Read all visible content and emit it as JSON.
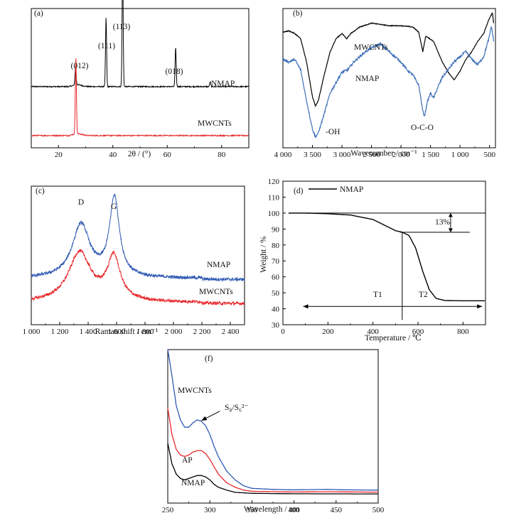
{
  "chart_data": [
    {
      "panel": "(a)",
      "type": "line",
      "xlabel": "2θ / (°)",
      "ylabel": "",
      "xlim": [
        10,
        90
      ],
      "xticks": [
        20,
        40,
        60,
        80
      ],
      "series": [
        {
          "name": "NMAP",
          "color": "#000000",
          "baseline": 0.62,
          "peaks": [
            [
              26.3,
              0.2
            ],
            [
              37.5,
              0.73
            ],
            [
              43.6,
              1.3
            ],
            [
              63.1,
              0.42
            ],
            [
              75.8,
              0.05
            ]
          ]
        },
        {
          "name": "MWCNTs",
          "color": "#e8282b",
          "baseline": 0.1,
          "peaks": [
            [
              26.4,
              0.82
            ]
          ]
        }
      ],
      "annotations": [
        {
          "text": "(012)",
          "x": 26.3
        },
        {
          "text": "(111)",
          "x": 37.5
        },
        {
          "text": "(113)",
          "x": 43.6
        },
        {
          "text": "(018)",
          "x": 63.1
        }
      ]
    },
    {
      "panel": "(b)",
      "type": "line",
      "xlabel": "Wavenumber / cm⁻¹",
      "ylabel": "",
      "xlim": [
        4000,
        400
      ],
      "xticks": [
        4000,
        3500,
        3000,
        2500,
        2000,
        1500,
        1000,
        500
      ],
      "xtick_labels": [
        "4 000",
        "3 500",
        "3 000",
        "2 500",
        "2 000",
        "1 500",
        "1 000",
        "500"
      ],
      "series": [
        {
          "name": "MWCNTs",
          "color": "#000000",
          "points": [
            [
              4000,
              0.85
            ],
            [
              3900,
              0.86
            ],
            [
              3800,
              0.84
            ],
            [
              3700,
              0.8
            ],
            [
              3600,
              0.62
            ],
            [
              3500,
              0.35
            ],
            [
              3450,
              0.28
            ],
            [
              3400,
              0.32
            ],
            [
              3300,
              0.52
            ],
            [
              3200,
              0.7
            ],
            [
              3100,
              0.8
            ],
            [
              3000,
              0.84
            ],
            [
              2920,
              0.8
            ],
            [
              2850,
              0.84
            ],
            [
              2700,
              0.89
            ],
            [
              2500,
              0.92
            ],
            [
              2350,
              0.91
            ],
            [
              2200,
              0.9
            ],
            [
              2000,
              0.9
            ],
            [
              1800,
              0.89
            ],
            [
              1700,
              0.85
            ],
            [
              1630,
              0.7
            ],
            [
              1580,
              0.82
            ],
            [
              1450,
              0.78
            ],
            [
              1300,
              0.62
            ],
            [
              1200,
              0.54
            ],
            [
              1100,
              0.48
            ],
            [
              1000,
              0.55
            ],
            [
              900,
              0.64
            ],
            [
              800,
              0.7
            ],
            [
              700,
              0.78
            ],
            [
              600,
              0.84
            ],
            [
              500,
              0.96
            ],
            [
              450,
              1.0
            ],
            [
              430,
              0.92
            ]
          ]
        },
        {
          "name": "NMAP",
          "color": "#3c6fb9",
          "points": [
            [
              4000,
              0.64
            ],
            [
              3900,
              0.62
            ],
            [
              3800,
              0.64
            ],
            [
              3700,
              0.56
            ],
            [
              3600,
              0.32
            ],
            [
              3500,
              0.1
            ],
            [
              3450,
              0.04
            ],
            [
              3400,
              0.07
            ],
            [
              3300,
              0.22
            ],
            [
              3200,
              0.38
            ],
            [
              3100,
              0.46
            ],
            [
              3000,
              0.54
            ],
            [
              2900,
              0.56
            ],
            [
              2800,
              0.62
            ],
            [
              2600,
              0.7
            ],
            [
              2450,
              0.74
            ],
            [
              2350,
              0.76
            ],
            [
              2250,
              0.72
            ],
            [
              2100,
              0.66
            ],
            [
              2000,
              0.62
            ],
            [
              1900,
              0.56
            ],
            [
              1800,
              0.52
            ],
            [
              1700,
              0.44
            ],
            [
              1630,
              0.24
            ],
            [
              1600,
              0.2
            ],
            [
              1560,
              0.3
            ],
            [
              1500,
              0.38
            ],
            [
              1450,
              0.34
            ],
            [
              1380,
              0.42
            ],
            [
              1300,
              0.5
            ],
            [
              1200,
              0.56
            ],
            [
              1100,
              0.62
            ],
            [
              1000,
              0.66
            ],
            [
              900,
              0.7
            ],
            [
              800,
              0.64
            ],
            [
              700,
              0.6
            ],
            [
              600,
              0.66
            ],
            [
              500,
              0.82
            ],
            [
              470,
              0.9
            ],
            [
              430,
              0.78
            ]
          ]
        }
      ],
      "annotations": [
        {
          "text": "MWCNTs"
        },
        {
          "text": "NMAP"
        },
        {
          "text": "-OH"
        },
        {
          "text": "O-C-O"
        }
      ]
    },
    {
      "panel": "(c)",
      "type": "line",
      "xlabel": "Raman shift / cm⁻¹",
      "ylabel": "",
      "xlim": [
        1000,
        2500
      ],
      "xticks": [
        1000,
        1200,
        1400,
        1600,
        1800,
        2000,
        2200,
        2400
      ],
      "xtick_labels": [
        "1 000",
        "1 200",
        "1 400",
        "1 600",
        "1 800",
        "2 000",
        "2 200",
        "2 400"
      ],
      "series": [
        {
          "name": "NMAP",
          "color": "#2e59b3",
          "baseline": 0.33,
          "bands": [
            [
              1350,
              0.42,
              75
            ],
            [
              1585,
              0.62,
              42
            ]
          ]
        },
        {
          "name": "MWCNTs",
          "color": "#e8282b",
          "baseline": 0.14,
          "bands": [
            [
              1340,
              0.39,
              95
            ],
            [
              1580,
              0.34,
              55
            ]
          ]
        }
      ],
      "annotations": [
        {
          "text": "D",
          "x": 1350
        },
        {
          "text": "G",
          "x": 1585
        }
      ]
    },
    {
      "panel": "(d)",
      "type": "line",
      "xlabel": "Temperature / ℃",
      "ylabel": "Weight / %",
      "xlim": [
        0,
        900
      ],
      "ylim": [
        30,
        120
      ],
      "xticks": [
        0,
        200,
        400,
        600,
        800
      ],
      "yticks": [
        30,
        40,
        50,
        60,
        70,
        80,
        90,
        100,
        110,
        120
      ],
      "series": [
        {
          "name": "NMAP",
          "color": "#000000",
          "points": [
            [
              25,
              100
            ],
            [
              100,
              100
            ],
            [
              200,
              99.6
            ],
            [
              300,
              98.8
            ],
            [
              400,
              96
            ],
            [
              450,
              92.5
            ],
            [
              500,
              89
            ],
            [
              530,
              88
            ],
            [
              560,
              86
            ],
            [
              590,
              78
            ],
            [
              620,
              64
            ],
            [
              650,
              52
            ],
            [
              680,
              46.5
            ],
            [
              720,
              45.2
            ],
            [
              800,
              45
            ],
            [
              900,
              45
            ]
          ]
        }
      ],
      "annotations": [
        {
          "text": "13%"
        },
        {
          "text": "T1"
        },
        {
          "text": "T2"
        }
      ]
    },
    {
      "panel": "(f)",
      "type": "line",
      "xlabel": "Wavelength / nm",
      "ylabel": "",
      "xlim": [
        250,
        500
      ],
      "xticks": [
        250,
        300,
        350,
        400,
        450,
        500
      ],
      "series": [
        {
          "name": "MWCNTs",
          "color": "#2e59b3",
          "points": [
            [
              250,
              1.0
            ],
            [
              255,
              0.82
            ],
            [
              260,
              0.62
            ],
            [
              265,
              0.52
            ],
            [
              270,
              0.47
            ],
            [
              275,
              0.47
            ],
            [
              280,
              0.5
            ],
            [
              285,
              0.52
            ],
            [
              290,
              0.51
            ],
            [
              295,
              0.48
            ],
            [
              300,
              0.42
            ],
            [
              305,
              0.34
            ],
            [
              310,
              0.27
            ],
            [
              320,
              0.17
            ],
            [
              330,
              0.11
            ],
            [
              340,
              0.07
            ],
            [
              350,
              0.052
            ],
            [
              375,
              0.045
            ],
            [
              400,
              0.042
            ],
            [
              440,
              0.045
            ],
            [
              460,
              0.042
            ],
            [
              500,
              0.04
            ]
          ]
        },
        {
          "name": "AP",
          "color": "#e8282b",
          "points": [
            [
              250,
              0.6
            ],
            [
              255,
              0.42
            ],
            [
              260,
              0.32
            ],
            [
              265,
              0.28
            ],
            [
              270,
              0.27
            ],
            [
              275,
              0.28
            ],
            [
              280,
              0.3
            ],
            [
              285,
              0.31
            ],
            [
              290,
              0.31
            ],
            [
              295,
              0.29
            ],
            [
              300,
              0.25
            ],
            [
              305,
              0.2
            ],
            [
              310,
              0.15
            ],
            [
              320,
              0.09
            ],
            [
              330,
              0.06
            ],
            [
              340,
              0.04
            ],
            [
              350,
              0.032
            ],
            [
              400,
              0.027
            ],
            [
              440,
              0.029
            ],
            [
              500,
              0.026
            ]
          ]
        },
        {
          "name": "NMAP",
          "color": "#000000",
          "points": [
            [
              250,
              0.36
            ],
            [
              255,
              0.22
            ],
            [
              260,
              0.15
            ],
            [
              265,
              0.12
            ],
            [
              270,
              0.11
            ],
            [
              275,
              0.12
            ],
            [
              280,
              0.13
            ],
            [
              285,
              0.14
            ],
            [
              290,
              0.14
            ],
            [
              295,
              0.13
            ],
            [
              300,
              0.11
            ],
            [
              305,
              0.08
            ],
            [
              310,
              0.06
            ],
            [
              320,
              0.04
            ],
            [
              330,
              0.025
            ],
            [
              350,
              0.018
            ],
            [
              400,
              0.015
            ],
            [
              500,
              0.014
            ]
          ]
        }
      ],
      "annotations": [
        {
          "text": "MWCNTs"
        },
        {
          "text": "S₈/S₆²⁻"
        },
        {
          "text": "AP"
        },
        {
          "text": "NMAP"
        }
      ]
    }
  ]
}
